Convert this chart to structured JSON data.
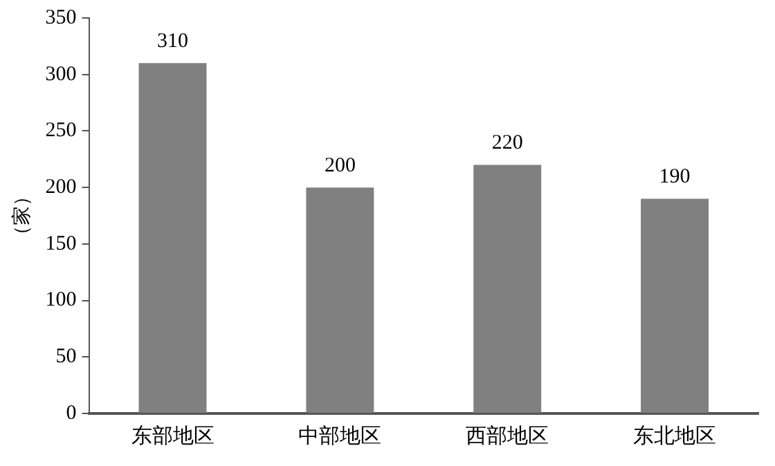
{
  "chart_data": {
    "type": "bar",
    "ylabel": "（家）",
    "categories": [
      "东部地区",
      "中部地区",
      "西部地区",
      "东北地区"
    ],
    "values": [
      310,
      200,
      220,
      190
    ],
    "color": "#808080",
    "ylim": [
      0,
      350
    ],
    "yticks": [
      0,
      50,
      100,
      150,
      200,
      250,
      300,
      350
    ],
    "grid": false,
    "data_labels": true
  }
}
